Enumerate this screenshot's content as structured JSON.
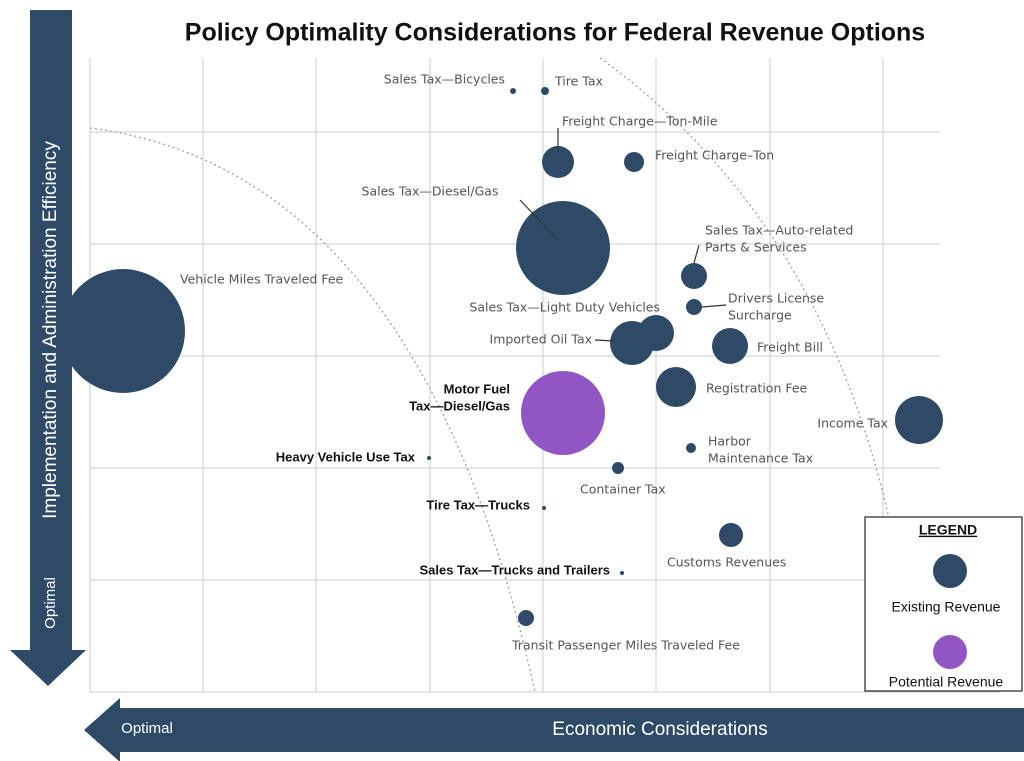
{
  "header": {
    "title": "Policy Optimality Considerations for Federal Revenue Options"
  },
  "axes": {
    "y_label": "Implementation and Administration Efficiency",
    "y_optimal": "Optimal",
    "x_label": "Economic Considerations",
    "x_optimal": "Optimal"
  },
  "nodes": [
    {
      "label": "Sales Tax—Bicycles"
    },
    {
      "label": "Tire Tax"
    },
    {
      "label": "Freight Charge—Ton-Mile"
    },
    {
      "label": "Freight Charge–Ton"
    },
    {
      "label": "Sales Tax—Diesel/Gas"
    },
    {
      "label": [
        "Sales Tax—Auto-related",
        "Parts & Services"
      ]
    },
    {
      "label": "Vehicle Miles Traveled Fee"
    },
    {
      "label": "Sales Tax—Light Duty Vehicles"
    },
    {
      "label": [
        "Drivers License",
        "Surcharge"
      ]
    },
    {
      "label": "Imported Oil Tax"
    },
    {
      "label": "Freight Bill"
    },
    {
      "label": "Registration Fee"
    },
    {
      "label": [
        "Motor Fuel",
        "Tax—Diesel/Gas"
      ]
    },
    {
      "label": "Income Tax"
    },
    {
      "label": [
        "Harbor",
        "Maintenance Tax"
      ]
    },
    {
      "label": "Heavy Vehicle Use Tax"
    },
    {
      "label": "Container Tax"
    },
    {
      "label": "Tire Tax—Trucks"
    },
    {
      "label": "Customs Revenues"
    },
    {
      "label": "Sales Tax—Trucks and Trailers"
    },
    {
      "label": "Transit Passenger Miles Traveled Fee"
    }
  ],
  "legend": {
    "title": "LEGEND",
    "items": [
      "Existing Revenue",
      "Potential Revenue"
    ]
  }
}
